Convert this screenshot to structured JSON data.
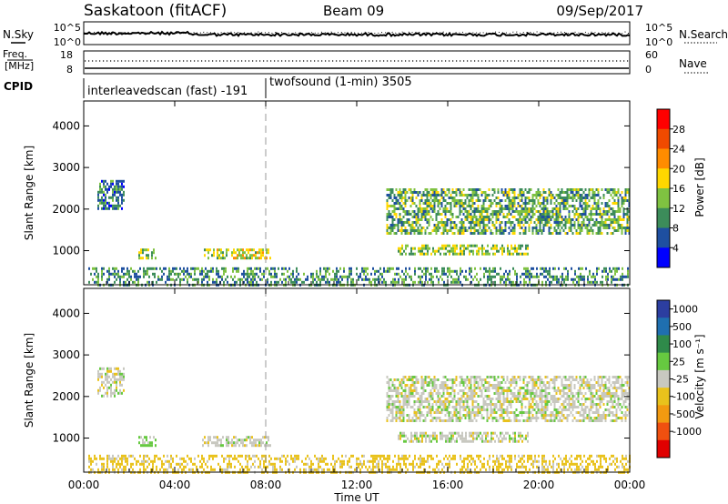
{
  "header": {
    "station": "Saskatoon (fitACF)",
    "beam": "Beam 09",
    "date": "09/Sep/2017"
  },
  "noise_panel": {
    "left_label": "N.Sky",
    "right_label": "N.Search",
    "ticks_left": [
      "10^5",
      "10^0"
    ],
    "ticks_right": [
      "10^5",
      "10^0"
    ]
  },
  "freq_panel": {
    "left_label_1": "Freq.",
    "left_label_2": "[MHz]",
    "right_label": "Nave",
    "ticks_left": [
      "18",
      "8"
    ],
    "ticks_right": [
      "60",
      "0"
    ]
  },
  "cpid": {
    "label": "CPID",
    "segments": [
      {
        "name": "interleavedscan (fast) -191",
        "start_hour": 0,
        "end_hour": 8
      },
      {
        "name": "twofsound (1-min) 3505",
        "start_hour": 8,
        "end_hour": 24
      }
    ]
  },
  "x_axis": {
    "label": "Time UT",
    "ticks": [
      "00:00",
      "04:00",
      "08:00",
      "12:00",
      "16:00",
      "20:00",
      "00:00"
    ],
    "range_hours": [
      0,
      24
    ]
  },
  "power_colorbar": {
    "label": "Power [dB]",
    "ticks": [
      "28",
      "24",
      "20",
      "16",
      "12",
      "8",
      "4"
    ],
    "colors": [
      "#ff0000",
      "#f04a00",
      "#ff8c00",
      "#ffd700",
      "#7fc241",
      "#3c8c5a",
      "#1e4fa0",
      "#0000ff"
    ]
  },
  "velocity_colorbar": {
    "label": "Velocity [m s⁻¹]",
    "ticks": [
      "1000",
      "500",
      "100",
      "25",
      "-25",
      "-100",
      "-500",
      "-1000"
    ],
    "colors": [
      "#2c3ea0",
      "#1f6fb0",
      "#2f8a4a",
      "#66c940",
      "#c8c8c0",
      "#e9c21c",
      "#f29a10",
      "#f05010",
      "#e00000"
    ]
  },
  "chart_data": [
    {
      "type": "heatmap",
      "title": "",
      "xlabel": "Time UT",
      "ylabel": "Slant Range [km]",
      "xlim": [
        0,
        24
      ],
      "ylim": [
        180,
        4600
      ],
      "y_ticks": [
        1000,
        2000,
        3000,
        4000
      ],
      "colorbar": "Power [dB]",
      "echo_regions": [
        {
          "t_start": 0.2,
          "t_end": 24,
          "r_start": 180,
          "r_end": 600,
          "power_db": 10
        },
        {
          "t_start": 0.6,
          "t_end": 1.8,
          "r_start": 2000,
          "r_end": 2700,
          "power_db": 8
        },
        {
          "t_start": 2.4,
          "t_end": 3.2,
          "r_start": 800,
          "r_end": 1050,
          "power_db": 14
        },
        {
          "t_start": 5.2,
          "t_end": 8.2,
          "r_start": 800,
          "r_end": 1050,
          "power_db": 16
        },
        {
          "t_start": 13.3,
          "t_end": 24,
          "r_start": 1400,
          "r_end": 2500,
          "power_db": 12
        },
        {
          "t_start": 13.8,
          "t_end": 19.5,
          "r_start": 900,
          "r_end": 1150,
          "power_db": 14
        }
      ]
    },
    {
      "type": "heatmap",
      "title": "",
      "xlabel": "Time UT",
      "ylabel": "Slant Range [km]",
      "xlim": [
        0,
        24
      ],
      "ylim": [
        180,
        4600
      ],
      "y_ticks": [
        1000,
        2000,
        3000,
        4000
      ],
      "colorbar": "Velocity [m s⁻¹]",
      "echo_regions": [
        {
          "t_start": 0.2,
          "t_end": 24,
          "r_start": 180,
          "r_end": 600,
          "velocity_ms": -80
        },
        {
          "t_start": 0.6,
          "t_end": 1.8,
          "r_start": 2000,
          "r_end": 2700,
          "velocity_ms": 0
        },
        {
          "t_start": 2.4,
          "t_end": 3.2,
          "r_start": 800,
          "r_end": 1050,
          "velocity_ms": 80
        },
        {
          "t_start": 5.2,
          "t_end": 8.2,
          "r_start": 800,
          "r_end": 1050,
          "velocity_ms": 0
        },
        {
          "t_start": 13.3,
          "t_end": 24,
          "r_start": 1400,
          "r_end": 2500,
          "velocity_ms": 0
        },
        {
          "t_start": 13.8,
          "t_end": 19.5,
          "r_start": 900,
          "r_end": 1150,
          "velocity_ms": 0
        }
      ]
    }
  ]
}
